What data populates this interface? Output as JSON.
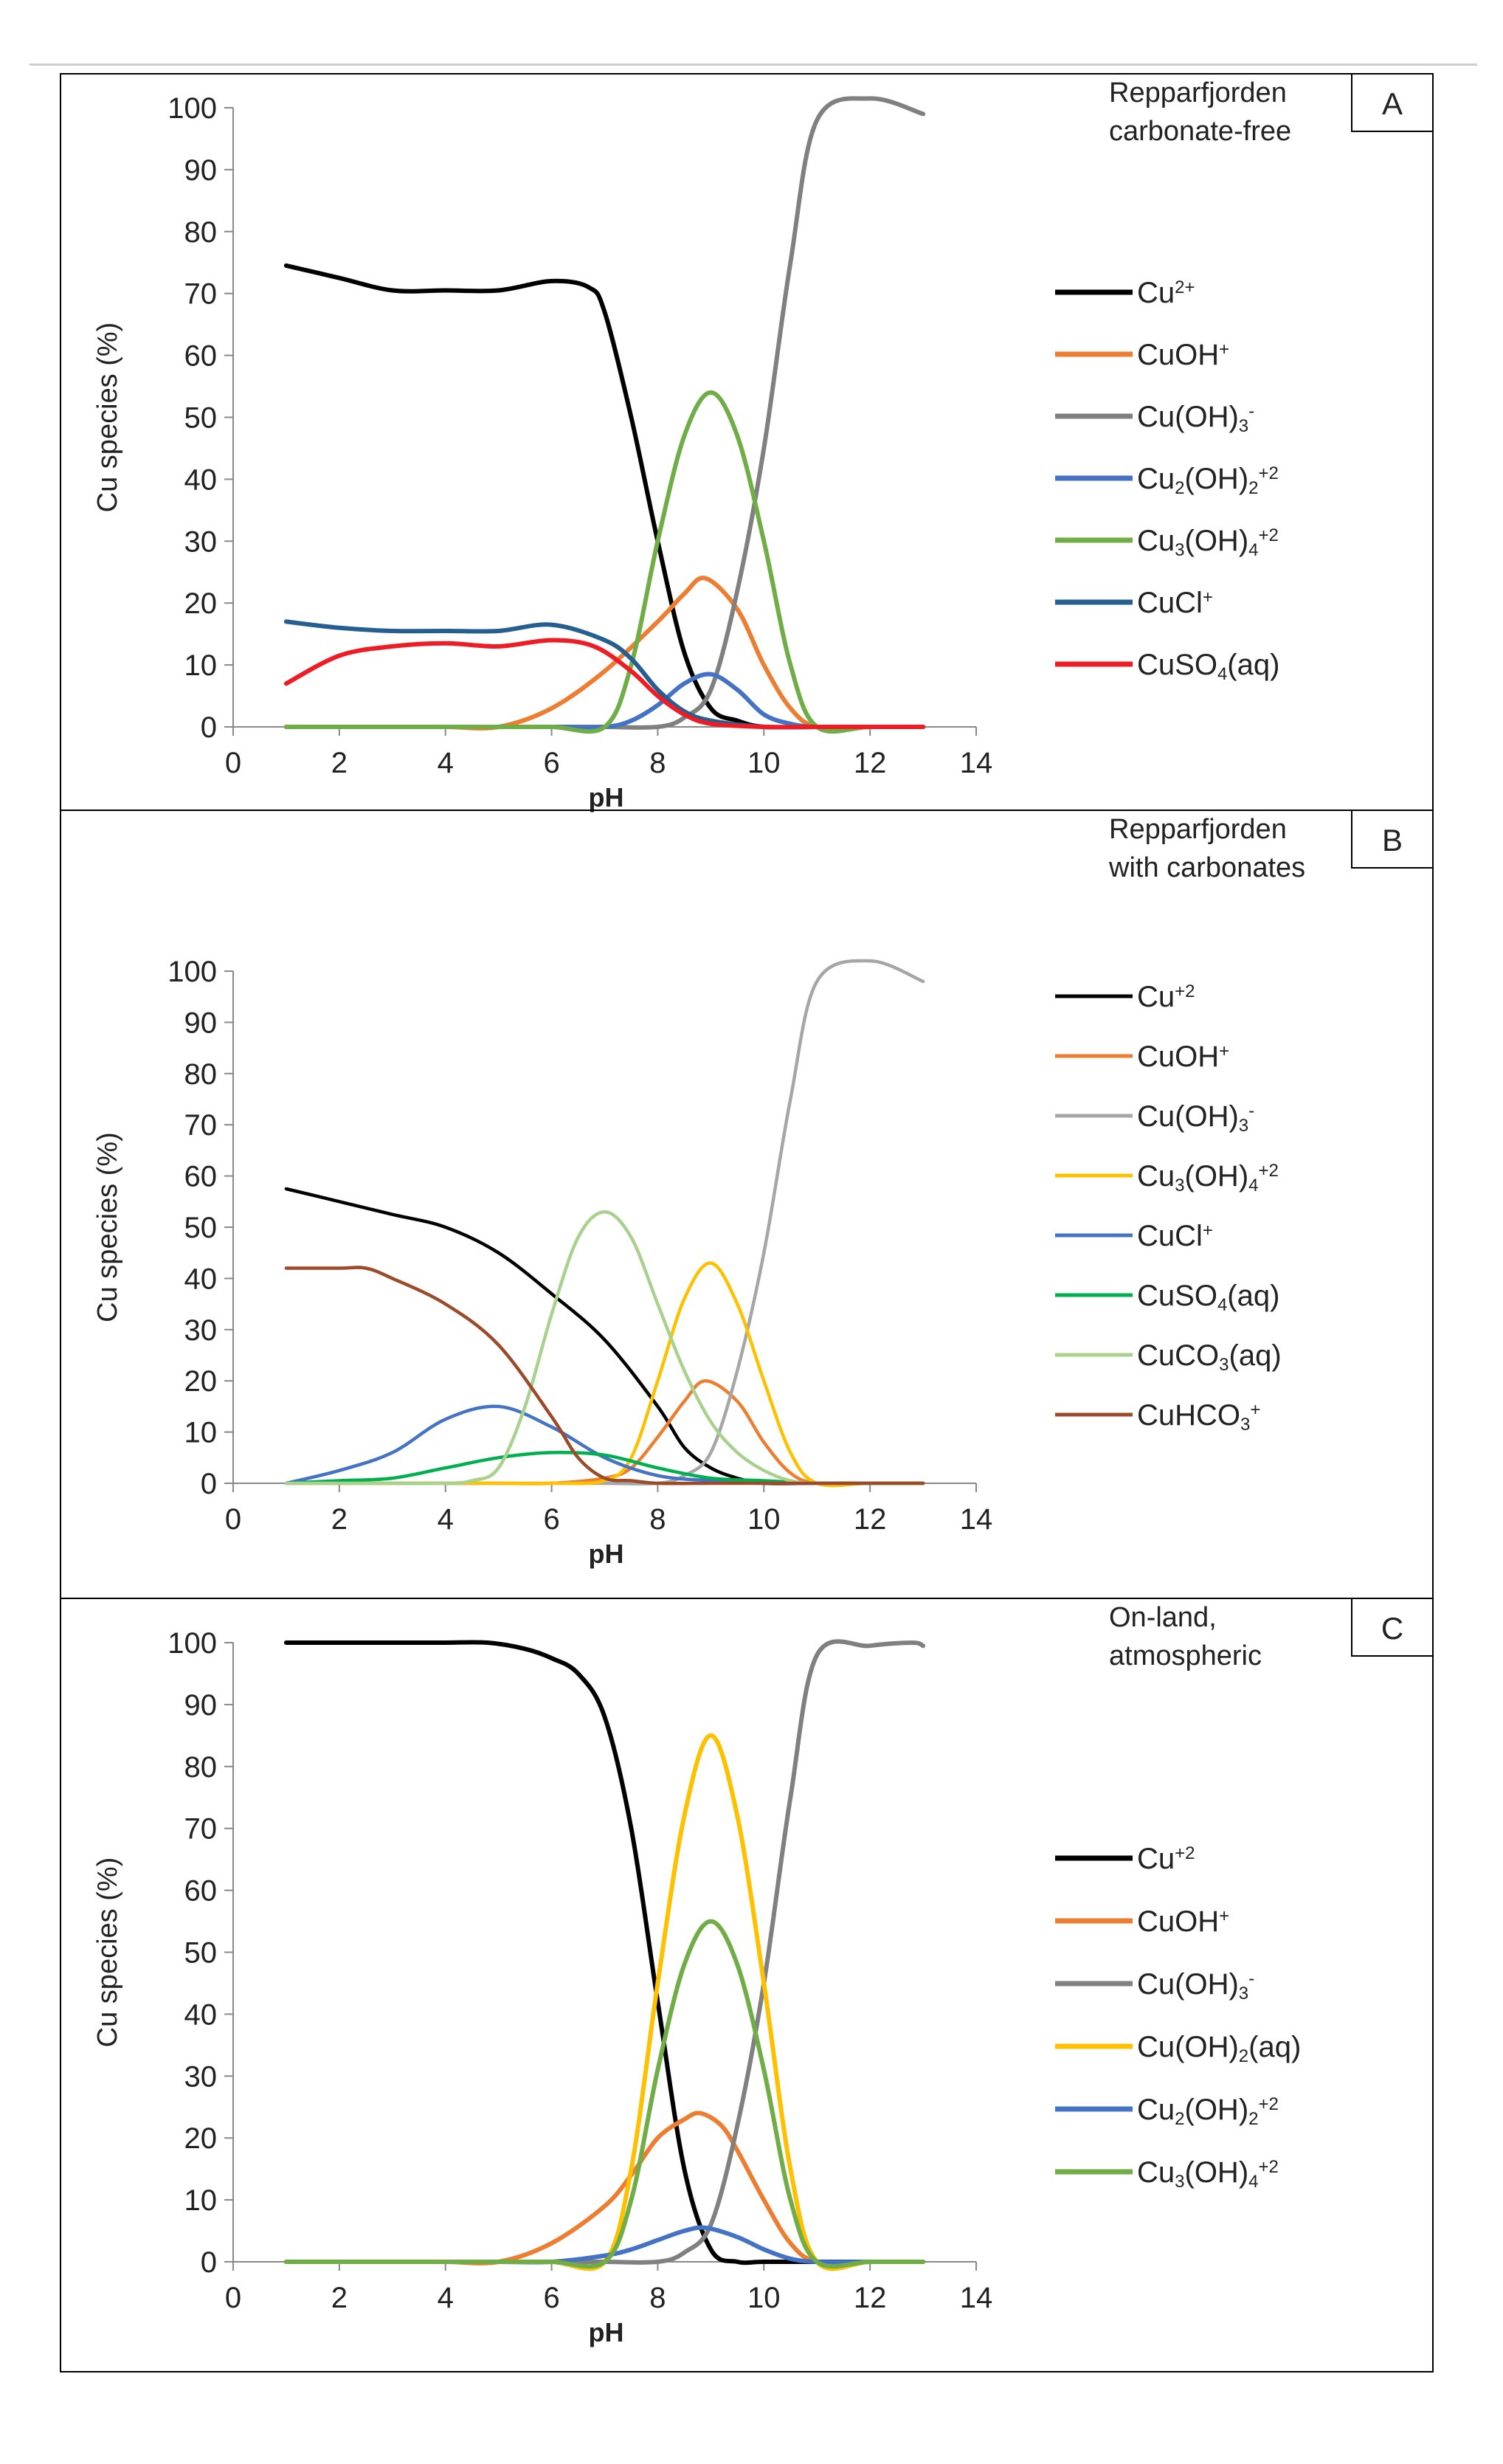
{
  "colors": {
    "black": "#000000",
    "orange": "#ed7d31",
    "gray": "#808080",
    "lightgray": "#a6a6a6",
    "blue": "#4472c4",
    "green": "#70ad47",
    "darkblue": "#255e91",
    "red": "#ee1c25",
    "yellow": "#ffc000",
    "darkgreen": "#00b050",
    "lightgreen": "#a9d18e",
    "brown": "#9c4a28"
  },
  "chart_data": [
    {
      "type": "line",
      "panel_letter": "A",
      "title_lines": [
        "Repparfjorden",
        "carbonate-free"
      ],
      "xlabel": "pH",
      "ylabel": "Cu species (%)",
      "xlim": [
        0,
        14
      ],
      "ylim": [
        0,
        100
      ],
      "xticks": [
        0,
        2,
        4,
        6,
        8,
        10,
        12,
        14
      ],
      "yticks": [
        0,
        10,
        20,
        30,
        40,
        50,
        60,
        70,
        80,
        90,
        100
      ],
      "grid": false,
      "legend_position": "right",
      "series": [
        {
          "name": "Cu2+",
          "label_base": "Cu",
          "label_sup": "2+",
          "color": "black",
          "thick": true,
          "x": [
            1,
            2,
            3,
            4,
            5,
            6,
            6.7,
            7,
            7.5,
            8,
            8.5,
            9,
            9.5,
            10,
            11,
            12,
            13
          ],
          "y": [
            74.5,
            72.5,
            70.5,
            70.5,
            70.5,
            72,
            71,
            67,
            50,
            30,
            12,
            3,
            1,
            0,
            0,
            0,
            0
          ]
        },
        {
          "name": "CuOH+",
          "label_base": "CuOH",
          "label_sup": "+",
          "color": "orange",
          "thick": true,
          "x": [
            1,
            2,
            3,
            4,
            5,
            6,
            7,
            8,
            8.5,
            8.9,
            9.5,
            10,
            10.5,
            11,
            12,
            13
          ],
          "y": [
            0,
            0,
            0,
            0,
            0,
            3,
            9,
            17,
            21.5,
            24,
            19,
            10,
            3,
            0,
            0,
            0
          ]
        },
        {
          "name": "Cu(OH)3-",
          "label_base": "Cu(OH)",
          "label_sub": "3",
          "label_sup": "-",
          "color": "gray",
          "thick": true,
          "x": [
            1,
            2,
            3,
            4,
            5,
            6,
            7,
            8,
            8.5,
            9,
            9.5,
            10,
            10.5,
            11,
            12,
            13
          ],
          "y": [
            0,
            0,
            0,
            0,
            0,
            0,
            0,
            0,
            1.5,
            6,
            22,
            45,
            75,
            98,
            101.5,
            99
          ]
        },
        {
          "name": "Cu2(OH)2+2",
          "label_base": "Cu",
          "label_sub": "2",
          "label_mid": "(OH)",
          "label_sub2": "2",
          "label_sup": "+2",
          "color": "blue",
          "thick": true,
          "x": [
            1,
            2,
            3,
            4,
            5,
            6,
            7,
            7.5,
            8,
            8.5,
            9,
            9.5,
            10,
            10.5,
            11,
            12,
            13
          ],
          "y": [
            0,
            0,
            0,
            0,
            0,
            0,
            0,
            1,
            3.5,
            7,
            8.5,
            6,
            2,
            0.5,
            0,
            0,
            0
          ]
        },
        {
          "name": "Cu3(OH)4+2",
          "label_base": "Cu",
          "label_sub": "3",
          "label_mid": "(OH)",
          "label_sub2": "4",
          "label_sup": "+2",
          "color": "green",
          "thick": true,
          "x": [
            1,
            2,
            3,
            4,
            5,
            6,
            7,
            7.5,
            8,
            8.5,
            9,
            9.5,
            10,
            10.5,
            11,
            12,
            13
          ],
          "y": [
            0,
            0,
            0,
            0,
            0,
            0,
            0,
            10,
            30,
            47,
            54,
            47,
            30,
            10,
            0,
            0,
            0
          ]
        },
        {
          "name": "CuCl+",
          "label_base": "CuCl",
          "label_sup": "+",
          "color": "darkblue",
          "thick": true,
          "x": [
            1,
            2,
            3,
            4,
            5,
            6,
            7,
            7.5,
            8,
            8.5,
            9,
            10,
            11,
            12,
            13
          ],
          "y": [
            17,
            16,
            15.5,
            15.5,
            15.5,
            16.5,
            14,
            11,
            6,
            2.5,
            1,
            0,
            0,
            0,
            0
          ]
        },
        {
          "name": "CuSO4(aq)",
          "label_base": "CuSO",
          "label_sub": "4",
          "label_mid": "(aq)",
          "color": "red",
          "thick": true,
          "x": [
            1,
            2,
            3,
            4,
            5,
            6,
            6.8,
            7.5,
            8,
            8.5,
            9,
            10,
            11,
            12,
            13
          ],
          "y": [
            7,
            11.5,
            13,
            13.5,
            13,
            14,
            13,
            9,
            5,
            2,
            0.5,
            0,
            0,
            0,
            0
          ]
        }
      ]
    },
    {
      "type": "line",
      "panel_letter": "B",
      "title_lines": [
        "Repparfjorden",
        "with carbonates"
      ],
      "xlabel": "pH",
      "ylabel": "Cu species (%)",
      "xlim": [
        0,
        14
      ],
      "ylim": [
        0,
        100
      ],
      "xticks": [
        0,
        2,
        4,
        6,
        8,
        10,
        12,
        14
      ],
      "yticks": [
        0,
        10,
        20,
        30,
        40,
        50,
        60,
        70,
        80,
        90,
        100
      ],
      "grid": false,
      "legend_position": "right",
      "series": [
        {
          "name": "Cu+2",
          "label_base": "Cu",
          "label_sup": "+2",
          "color": "black",
          "thick": false,
          "x": [
            1,
            2,
            3,
            4,
            5,
            6,
            7,
            8,
            8.5,
            9,
            9.5,
            10,
            11,
            12,
            13
          ],
          "y": [
            57.5,
            55,
            52.5,
            50,
            45,
            37,
            28,
            15,
            7,
            3,
            1,
            0,
            0,
            0,
            0
          ]
        },
        {
          "name": "CuOH+",
          "label_base": "CuOH",
          "label_sup": "+",
          "color": "orange",
          "thick": false,
          "x": [
            1,
            2,
            3,
            4,
            5,
            6,
            7,
            7.5,
            8,
            8.5,
            8.9,
            9.5,
            10,
            10.5,
            11,
            12,
            13
          ],
          "y": [
            0,
            0,
            0,
            0,
            0,
            0,
            1,
            3,
            9,
            16,
            20,
            16,
            8,
            2,
            0,
            0,
            0
          ]
        },
        {
          "name": "Cu(OH)3-",
          "label_base": "Cu(OH)",
          "label_sub": "3",
          "label_sup": "-",
          "color": "lightgray",
          "thick": false,
          "x": [
            1,
            2,
            3,
            4,
            5,
            6,
            7,
            8,
            8.5,
            9,
            9.5,
            10,
            10.5,
            11,
            12,
            13
          ],
          "y": [
            0,
            0,
            0,
            0,
            0,
            0,
            0,
            0,
            1.5,
            6,
            22,
            45,
            75,
            98,
            102,
            98
          ]
        },
        {
          "name": "Cu3(OH)4+2",
          "label_base": "Cu",
          "label_sub": "3",
          "label_mid": "(OH)",
          "label_sub2": "4",
          "label_sup": "+2",
          "color": "yellow",
          "thick": false,
          "x": [
            1,
            2,
            3,
            4,
            5,
            6,
            7,
            7.5,
            8,
            8.5,
            9,
            9.5,
            10,
            10.5,
            11,
            12,
            13
          ],
          "y": [
            0,
            0,
            0,
            0,
            0,
            0,
            0.5,
            5,
            20,
            36,
            43,
            35,
            20,
            6,
            0,
            0,
            0
          ]
        },
        {
          "name": "CuCl+",
          "label_base": "CuCl",
          "label_sup": "+",
          "color": "blue",
          "thick": false,
          "x": [
            1,
            2,
            3,
            4,
            5,
            6,
            7,
            8,
            9,
            10,
            11,
            12,
            13
          ],
          "y": [
            0,
            2.5,
            6,
            12.5,
            15,
            11,
            5,
            1.5,
            0.5,
            0,
            0,
            0,
            0
          ]
        },
        {
          "name": "CuSO4(aq)",
          "label_base": "CuSO",
          "label_sub": "4",
          "label_mid": "(aq)",
          "color": "darkgreen",
          "thick": false,
          "x": [
            1,
            2,
            3,
            4,
            5,
            6,
            7,
            8,
            9,
            10,
            11,
            12,
            13
          ],
          "y": [
            0,
            0.5,
            1,
            3,
            5,
            6,
            5.5,
            3,
            1,
            0.5,
            0,
            0,
            0
          ]
        },
        {
          "name": "CuCO3(aq)",
          "label_base": "CuCO",
          "label_sub": "3",
          "label_mid": "(aq)",
          "color": "lightgreen",
          "thick": false,
          "x": [
            1,
            2,
            3,
            4,
            4.5,
            5,
            5.5,
            6,
            6.5,
            7,
            7.5,
            8,
            8.5,
            9,
            9.5,
            10,
            10.5,
            11,
            12,
            13
          ],
          "y": [
            0,
            0,
            0,
            0,
            0.5,
            3,
            15,
            33,
            48,
            53,
            48,
            35,
            22,
            12,
            6,
            2.5,
            0.5,
            0,
            0,
            0
          ]
        },
        {
          "name": "CuHCO3+",
          "label_base": "CuHCO",
          "label_sub": "3",
          "label_sup": "+",
          "color": "brown",
          "thick": false,
          "x": [
            1,
            2,
            2.5,
            3,
            4,
            5,
            6,
            6.5,
            7,
            7.5,
            8,
            9,
            10,
            11,
            12,
            13
          ],
          "y": [
            42,
            42,
            42,
            40,
            35,
            27,
            13,
            5,
            1,
            0.5,
            0,
            0,
            0,
            0,
            0,
            0
          ]
        }
      ]
    },
    {
      "type": "line",
      "panel_letter": "C",
      "title_lines": [
        "On-land,",
        "atmospheric"
      ],
      "xlabel": "pH",
      "ylabel": "Cu species (%)",
      "xlim": [
        0,
        14
      ],
      "ylim": [
        0,
        100
      ],
      "xticks": [
        0,
        2,
        4,
        6,
        8,
        10,
        12,
        14
      ],
      "yticks": [
        0,
        10,
        20,
        30,
        40,
        50,
        60,
        70,
        80,
        90,
        100
      ],
      "grid": false,
      "legend_position": "right",
      "series": [
        {
          "name": "Cu+2",
          "label_base": "Cu",
          "label_sup": "+2",
          "color": "black",
          "thick": true,
          "x": [
            1,
            2,
            3,
            4,
            4.8,
            5.5,
            6,
            6.5,
            7,
            7.5,
            8,
            8.5,
            9,
            9.5,
            10,
            11,
            12,
            13
          ],
          "y": [
            100,
            100,
            100,
            100,
            100,
            99,
            97.5,
            95,
            88,
            70,
            42,
            15,
            2,
            0,
            0,
            0,
            0,
            0
          ]
        },
        {
          "name": "CuOH+",
          "label_base": "CuOH",
          "label_sup": "+",
          "color": "orange",
          "thick": true,
          "x": [
            1,
            2,
            3,
            4,
            5,
            6,
            7,
            7.5,
            8,
            8.5,
            8.8,
            9.2,
            9.5,
            10,
            10.5,
            11,
            12,
            13
          ],
          "y": [
            0,
            0,
            0,
            0,
            0,
            3,
            9,
            14,
            20,
            23,
            24,
            22,
            18,
            10,
            3,
            0,
            0,
            0
          ]
        },
        {
          "name": "Cu(OH)3-",
          "label_base": "Cu(OH)",
          "label_sub": "3",
          "label_sup": "-",
          "color": "gray",
          "thick": true,
          "x": [
            1,
            2,
            3,
            4,
            5,
            6,
            7,
            8,
            8.5,
            9,
            9.5,
            10,
            10.5,
            11,
            12,
            12.8,
            13
          ],
          "y": [
            0,
            0,
            0,
            0,
            0,
            0,
            0,
            0,
            1.5,
            6,
            22,
            45,
            75,
            98,
            99.5,
            100,
            99.5
          ]
        },
        {
          "name": "Cu(OH)2(aq)",
          "label_base": "Cu(OH)",
          "label_sub": "2",
          "label_mid": "(aq)",
          "color": "yellow",
          "thick": true,
          "x": [
            1,
            2,
            3,
            4,
            5,
            6,
            7,
            7.5,
            8,
            8.5,
            9,
            9.5,
            10,
            10.5,
            11,
            12,
            13
          ],
          "y": [
            0,
            0,
            0,
            0,
            0,
            0,
            0,
            15,
            45,
            72,
            85,
            72,
            45,
            15,
            0,
            0,
            0
          ]
        },
        {
          "name": "Cu2(OH)2+2",
          "label_base": "Cu",
          "label_sub": "2",
          "label_mid": "(OH)",
          "label_sub2": "2",
          "label_sup": "+2",
          "color": "blue",
          "thick": true,
          "x": [
            1,
            2,
            3,
            4,
            5,
            6,
            7,
            7.5,
            8,
            8.5,
            8.9,
            9.5,
            10,
            10.5,
            11,
            12,
            13
          ],
          "y": [
            0,
            0,
            0,
            0,
            0,
            0,
            1,
            2,
            3.5,
            5,
            5.5,
            4,
            2,
            0.5,
            0,
            0,
            0
          ]
        },
        {
          "name": "Cu3(OH)4+2",
          "label_base": "Cu",
          "label_sub": "3",
          "label_mid": "(OH)",
          "label_sub2": "4",
          "label_sup": "+2",
          "color": "green",
          "thick": true,
          "x": [
            1,
            2,
            3,
            4,
            5,
            6,
            7,
            7.5,
            8,
            8.5,
            9,
            9.5,
            10,
            10.5,
            11,
            12,
            13
          ],
          "y": [
            0,
            0,
            0,
            0,
            0,
            0,
            0,
            10,
            31,
            48,
            55,
            48,
            31,
            10,
            0,
            0,
            0
          ]
        }
      ]
    }
  ]
}
